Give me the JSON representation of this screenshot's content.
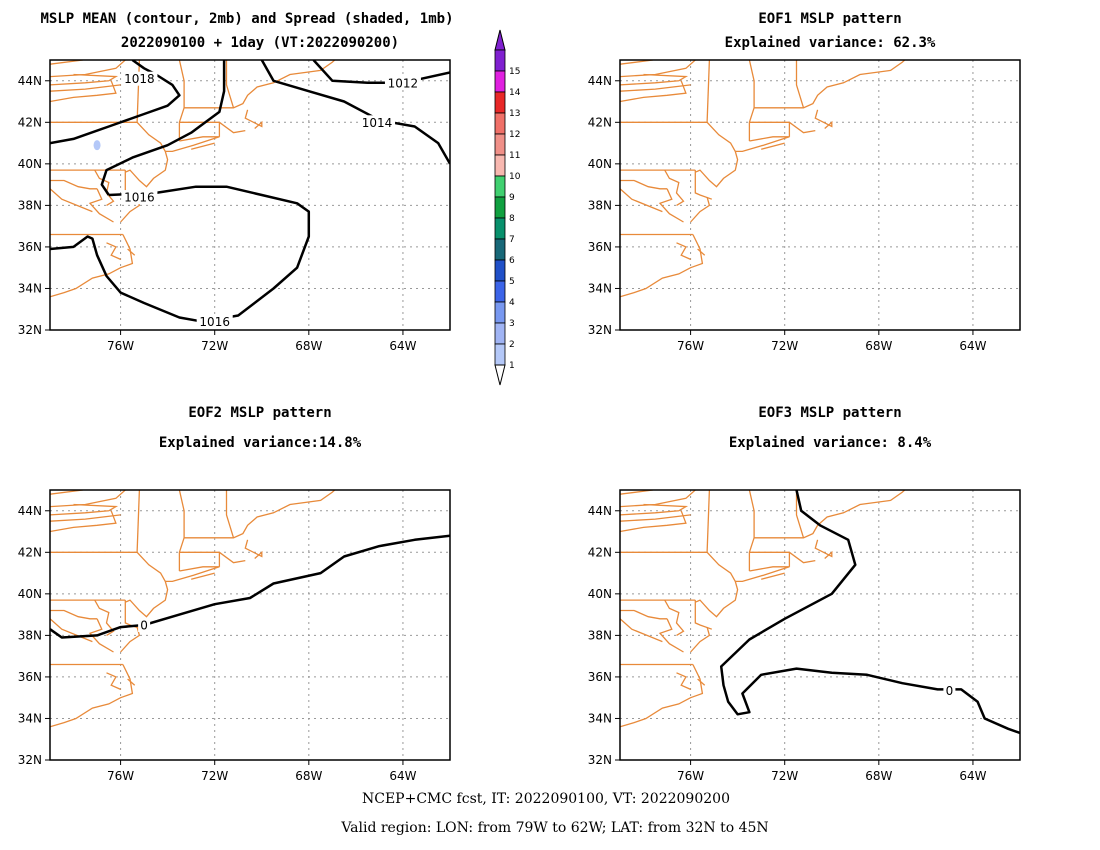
{
  "panels": [
    {
      "id": "mean",
      "title_lines": [
        "MSLP MEAN (contour, 2mb) and Spread (shaded, 1mb)",
        "2022090100 + 1day (VT:2022090200)"
      ],
      "contours": [
        {
          "label": "1018",
          "pts": [
            [
              -79,
              41.0
            ],
            [
              -78,
              41.2
            ],
            [
              -76.5,
              41.8
            ],
            [
              -75,
              42.4
            ],
            [
              -74,
              42.8
            ],
            [
              -73.5,
              43.3
            ],
            [
              -73.8,
              43.8
            ],
            [
              -74.5,
              44.3
            ],
            [
              -75,
              44.6
            ],
            [
              -75.5,
              45
            ]
          ],
          "label_at": [
            -75.2,
            44.1
          ]
        },
        {
          "label": "1016",
          "pts": [
            [
              -76.5,
              38.5
            ],
            [
              -76.8,
              39.0
            ],
            [
              -76.6,
              39.7
            ],
            [
              -75.5,
              40.3
            ],
            [
              -74,
              40.9
            ],
            [
              -73,
              41.5
            ],
            [
              -71.8,
              42.5
            ],
            [
              -71.6,
              43.5
            ],
            [
              -71.6,
              45
            ]
          ],
          "label_at": null
        },
        {
          "label": "1016",
          "pts": [
            [
              -76.5,
              38.5
            ],
            [
              -74.5,
              38.6
            ],
            [
              -72.8,
              38.9
            ],
            [
              -71.5,
              38.9
            ],
            [
              -70,
              38.5
            ],
            [
              -68.5,
              38.1
            ],
            [
              -68,
              37.7
            ],
            [
              -68,
              36.5
            ],
            [
              -68.5,
              35
            ],
            [
              -69.5,
              34
            ],
            [
              -71,
              32.7
            ],
            [
              -72.5,
              32.4
            ],
            [
              -73.5,
              32.6
            ],
            [
              -75,
              33.3
            ],
            [
              -76,
              33.8
            ],
            [
              -76.6,
              34.6
            ],
            [
              -77,
              35.6
            ],
            [
              -77.2,
              36.4
            ],
            [
              -77.4,
              36.5
            ],
            [
              -78,
              36.0
            ],
            [
              -79,
              35.9
            ]
          ],
          "label_at": [
            -75.2,
            38.4
          ],
          "label2_at": [
            -72.0,
            32.4
          ]
        },
        {
          "label": "1014",
          "pts": [
            [
              -70.0,
              45
            ],
            [
              -69.5,
              44.0
            ],
            [
              -68,
              43.5
            ],
            [
              -66.5,
              43.0
            ],
            [
              -65,
              42.1
            ],
            [
              -63.5,
              41.8
            ],
            [
              -62.5,
              41.0
            ],
            [
              -62,
              40.0
            ]
          ],
          "label_at": [
            -65.1,
            42.0
          ]
        },
        {
          "label": "1012",
          "pts": [
            [
              -67.8,
              45
            ],
            [
              -67,
              44.0
            ],
            [
              -65.5,
              43.9
            ],
            [
              -64,
              43.9
            ],
            [
              -62,
              44.4
            ]
          ],
          "label_at": [
            -64.0,
            43.9
          ]
        }
      ],
      "spread_marks": [
        [
          -77.0,
          40.9
        ]
      ]
    },
    {
      "id": "eof1",
      "title_lines": [
        "EOF1 MSLP pattern",
        "Explained variance: 62.3%"
      ],
      "contours": []
    },
    {
      "id": "eof2",
      "title_lines": [
        "EOF2 MSLP pattern",
        "Explained variance:14.8%"
      ],
      "contours": [
        {
          "label": "0",
          "pts": [
            [
              -79,
              38.3
            ],
            [
              -78.5,
              37.9
            ],
            [
              -77,
              38.0
            ],
            [
              -76,
              38.4
            ],
            [
              -75,
              38.5
            ],
            [
              -73.5,
              39.0
            ],
            [
              -72,
              39.5
            ],
            [
              -70.5,
              39.8
            ],
            [
              -69.5,
              40.5
            ],
            [
              -67.5,
              41.0
            ],
            [
              -66.5,
              41.8
            ],
            [
              -65,
              42.3
            ],
            [
              -63.5,
              42.6
            ],
            [
              -62,
              42.8
            ]
          ],
          "label_at": [
            -75.0,
            38.5
          ]
        }
      ]
    },
    {
      "id": "eof3",
      "title_lines": [
        "EOF3 MSLP pattern",
        "Explained variance: 8.4%"
      ],
      "contours": [
        {
          "label": "0",
          "pts": [
            [
              -71.5,
              45
            ],
            [
              -71.3,
              44.0
            ],
            [
              -70.5,
              43.3
            ],
            [
              -69.3,
              42.6
            ],
            [
              -69.0,
              41.4
            ],
            [
              -70.0,
              40.0
            ],
            [
              -72.0,
              38.8
            ],
            [
              -73.5,
              37.8
            ],
            [
              -74.7,
              36.5
            ],
            [
              -74.6,
              35.6
            ],
            [
              -74.4,
              34.8
            ],
            [
              -74.0,
              34.2
            ],
            [
              -73.5,
              34.3
            ],
            [
              -73.8,
              35.2
            ],
            [
              -73.0,
              36.1
            ],
            [
              -71.5,
              36.4
            ],
            [
              -70,
              36.2
            ],
            [
              -68.5,
              36.1
            ],
            [
              -67,
              35.7
            ],
            [
              -65.5,
              35.4
            ],
            [
              -64.5,
              35.4
            ],
            [
              -63.8,
              34.8
            ],
            [
              -63.5,
              34.0
            ],
            [
              -62.5,
              33.5
            ],
            [
              -62,
              33.3
            ]
          ],
          "label_at": [
            -65.0,
            35.35
          ]
        }
      ]
    }
  ],
  "axes": {
    "lon_range": [
      -79,
      -62
    ],
    "lat_range": [
      32,
      45
    ],
    "xticks": [
      -76,
      -72,
      -68,
      -64
    ],
    "xtick_labels": [
      "76W",
      "72W",
      "68W",
      "64W"
    ],
    "yticks": [
      32,
      34,
      36,
      38,
      40,
      42,
      44
    ],
    "ytick_labels": [
      "32N",
      "34N",
      "36N",
      "38N",
      "40N",
      "42N",
      "44N"
    ]
  },
  "colorbar": {
    "labels": [
      "1",
      "2",
      "3",
      "4",
      "5",
      "6",
      "7",
      "8",
      "9",
      "10",
      "11",
      "12",
      "13",
      "14",
      "15"
    ],
    "colors": [
      "#b4c8f8",
      "#a0b4f4",
      "#7898f0",
      "#3c64e8",
      "#2050c8",
      "#186878",
      "#08906c",
      "#10a040",
      "#40d070",
      "#f8b8b0",
      "#f09088",
      "#f07068",
      "#e82828",
      "#e020e0",
      "#8020d0"
    ],
    "under_color": "#ffffff"
  },
  "footer": {
    "line1": "NCEP+CMC fcst, IT: 2022090100, VT: 2022090200",
    "line2": "Valid region: LON: from 79W to 62W; LAT: from 32N to 45N"
  },
  "coastline": [
    [
      [
        -79,
        44.8
      ],
      [
        -77.6,
        45.0
      ]
    ],
    [
      [
        -79,
        44.2
      ],
      [
        -77.5,
        44.3
      ],
      [
        -76.2,
        44.6
      ],
      [
        -75.8,
        45.0
      ]
    ],
    [
      [
        -79,
        43.8
      ],
      [
        -77.5,
        43.9
      ],
      [
        -76.5,
        44.0
      ],
      [
        -76.2,
        44.2
      ],
      [
        -78,
        44.3
      ]
    ],
    [
      [
        -79,
        43.5
      ],
      [
        -77.5,
        43.6
      ],
      [
        -76,
        43.8
      ]
    ],
    [
      [
        -79,
        43.0
      ],
      [
        -78,
        43.2
      ],
      [
        -77,
        43.3
      ],
      [
        -76.2,
        43.4
      ],
      [
        -76.4,
        44.0
      ]
    ],
    [
      [
        -79,
        42.0
      ],
      [
        -75.3,
        42.0
      ],
      [
        -74.8,
        41.4
      ],
      [
        -74.3,
        41.0
      ],
      [
        -74.1,
        40.6
      ]
    ],
    [
      [
        -75.3,
        42.0
      ],
      [
        -75.2,
        45.0
      ]
    ],
    [
      [
        -73.5,
        45.0
      ],
      [
        -73.3,
        44.0
      ],
      [
        -73.3,
        42.7
      ],
      [
        -73.5,
        42.0
      ],
      [
        -73.5,
        41.1
      ]
    ],
    [
      [
        -73.3,
        42.7
      ],
      [
        -71.2,
        42.7
      ],
      [
        -70.8,
        42.9
      ],
      [
        -70.6,
        43.3
      ],
      [
        -70.2,
        43.7
      ],
      [
        -69.5,
        43.9
      ],
      [
        -68.8,
        44.3
      ],
      [
        -67.5,
        44.5
      ],
      [
        -67.0,
        44.9
      ],
      [
        -66.9,
        45.0
      ]
    ],
    [
      [
        -71.5,
        45.0
      ],
      [
        -71.5,
        43.8
      ],
      [
        -71.2,
        42.7
      ]
    ],
    [
      [
        -73.5,
        42.0
      ],
      [
        -71.8,
        42.0
      ],
      [
        -71.2,
        41.5
      ],
      [
        -70.7,
        41.6
      ]
    ],
    [
      [
        -71.8,
        42.0
      ],
      [
        -71.8,
        41.3
      ]
    ],
    [
      [
        -70.6,
        42.6
      ],
      [
        -70.7,
        42.2
      ],
      [
        -70.0,
        41.8
      ],
      [
        -70.0,
        42.0
      ],
      [
        -70.3,
        41.7
      ]
    ],
    [
      [
        -73.5,
        41.1
      ],
      [
        -72.5,
        41.3
      ],
      [
        -71.8,
        41.3
      ],
      [
        -72.9,
        40.9
      ],
      [
        -73.8,
        40.6
      ],
      [
        -74.1,
        40.6
      ]
    ],
    [
      [
        -72.0,
        41.0
      ],
      [
        -73.0,
        40.7
      ]
    ],
    [
      [
        -74.1,
        40.6
      ],
      [
        -74.0,
        40.2
      ],
      [
        -74.1,
        39.7
      ],
      [
        -74.6,
        39.3
      ],
      [
        -74.9,
        38.9
      ],
      [
        -75.2,
        39.2
      ],
      [
        -75.6,
        39.7
      ],
      [
        -75.8,
        39.6
      ]
    ],
    [
      [
        -75.8,
        39.7
      ],
      [
        -75.8,
        38.6
      ],
      [
        -75.6,
        38.5
      ],
      [
        -75.1,
        38.3
      ]
    ],
    [
      [
        -75.3,
        38.4
      ],
      [
        -75.2,
        38.0
      ],
      [
        -75.6,
        37.7
      ],
      [
        -76.0,
        37.2
      ]
    ],
    [
      [
        -79,
        39.7
      ],
      [
        -75.8,
        39.7
      ]
    ],
    [
      [
        -77.1,
        39.7
      ],
      [
        -76.9,
        39.3
      ],
      [
        -76.5,
        39.1
      ],
      [
        -76.6,
        38.6
      ],
      [
        -76.3,
        38.2
      ],
      [
        -76.6,
        38.0
      ]
    ],
    [
      [
        -77.0,
        38.8
      ],
      [
        -76.8,
        38.3
      ],
      [
        -77.3,
        38.1
      ],
      [
        -76.9,
        37.6
      ],
      [
        -76.3,
        37.2
      ]
    ],
    [
      [
        -79,
        39.2
      ],
      [
        -78.4,
        39.2
      ],
      [
        -77.8,
        38.9
      ],
      [
        -77.3,
        38.8
      ],
      [
        -77.0,
        38.8
      ]
    ],
    [
      [
        -79,
        38.8
      ],
      [
        -78.5,
        38.3
      ],
      [
        -77.2,
        37.7
      ]
    ],
    [
      [
        -79,
        36.6
      ],
      [
        -75.9,
        36.6
      ]
    ],
    [
      [
        -75.9,
        36.6
      ],
      [
        -75.6,
        35.9
      ],
      [
        -75.5,
        35.2
      ],
      [
        -76.0,
        35.0
      ],
      [
        -76.5,
        34.7
      ],
      [
        -77.2,
        34.5
      ],
      [
        -77.9,
        34.0
      ],
      [
        -78.4,
        33.8
      ],
      [
        -79,
        33.6
      ]
    ],
    [
      [
        -76.6,
        36.2
      ],
      [
        -76.2,
        36.0
      ],
      [
        -76.4,
        35.6
      ],
      [
        -76.0,
        35.4
      ]
    ],
    [
      [
        -75.7,
        35.9
      ],
      [
        -75.4,
        35.6
      ]
    ]
  ]
}
